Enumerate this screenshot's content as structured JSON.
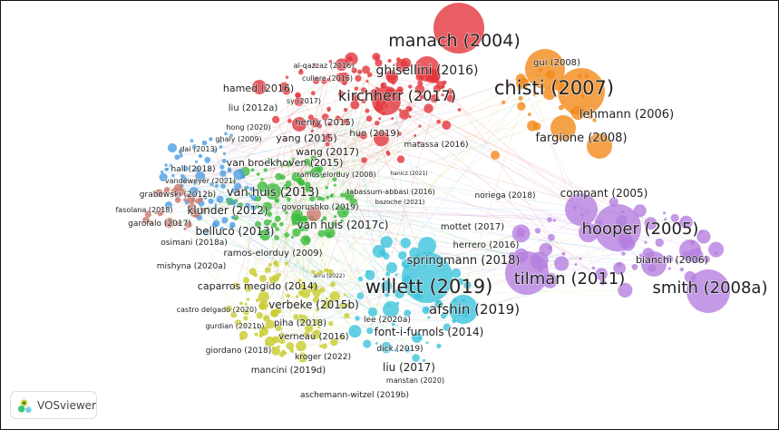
{
  "app": {
    "name": "VOSviewer"
  },
  "clusters": {
    "red": "#e2363c",
    "orange": "#f28a1a",
    "purple": "#b57fe0",
    "cyan": "#3cc4dc",
    "green": "#3cbc3c",
    "yellow": "#c8cc2c",
    "blue": "#4c9ee0",
    "brown": "#c8786c"
  },
  "labels": [
    {
      "text": "manach (2004)",
      "cluster": "red"
    },
    {
      "text": "ghisellini (2016)",
      "cluster": "red"
    },
    {
      "text": "chisti (2007)",
      "cluster": "orange"
    },
    {
      "text": "gui (2008)",
      "cluster": "orange"
    },
    {
      "text": "kirchherr (2017)",
      "cluster": "red"
    },
    {
      "text": "hamed (2016)",
      "cluster": "red"
    },
    {
      "text": "al-qazzaz (2016)",
      "cluster": "red"
    },
    {
      "text": "cullere (2016)",
      "cluster": "red"
    },
    {
      "text": "liu (2012a)",
      "cluster": "red"
    },
    {
      "text": "sy (2017)",
      "cluster": "red"
    },
    {
      "text": "henry (2015)",
      "cluster": "red"
    },
    {
      "text": "huo (2019)",
      "cluster": "red"
    },
    {
      "text": "hong (2020)",
      "cluster": "red"
    },
    {
      "text": "lehmann (2006)",
      "cluster": "orange"
    },
    {
      "text": "matassa (2016)",
      "cluster": "orange"
    },
    {
      "text": "fargione (2008)",
      "cluster": "orange"
    },
    {
      "text": "ghaly (2009)",
      "cluster": "blue"
    },
    {
      "text": "yang (2015)",
      "cluster": "red"
    },
    {
      "text": "dai (2013)",
      "cluster": "blue"
    },
    {
      "text": "wang (2017)",
      "cluster": "red"
    },
    {
      "text": "van broekhoven (2015)",
      "cluster": "green"
    },
    {
      "text": "hall (2018)",
      "cluster": "blue"
    },
    {
      "text": "vandeweyer (2021)",
      "cluster": "blue"
    },
    {
      "text": "ramos-elorduy (2008)",
      "cluster": "green"
    },
    {
      "text": "hanicz (2021)",
      "cluster": "red"
    },
    {
      "text": "grabowski (2012b)",
      "cluster": "brown"
    },
    {
      "text": "van huis (2013)",
      "cluster": "green"
    },
    {
      "text": "tabassum-abbasi (2016)",
      "cluster": "red"
    },
    {
      "text": "klunder (2012)",
      "cluster": "blue"
    },
    {
      "text": "govorushko (2019)",
      "cluster": "green"
    },
    {
      "text": "bazoche (2021)",
      "cluster": "red"
    },
    {
      "text": "fasolana (2018)",
      "cluster": "brown"
    },
    {
      "text": "garofalo (2017)",
      "cluster": "brown"
    },
    {
      "text": "van huis (2017c)",
      "cluster": "green"
    },
    {
      "text": "belluco (2013)",
      "cluster": "green"
    },
    {
      "text": "osimani (2018a)",
      "cluster": "blue"
    },
    {
      "text": "mottet (2017)",
      "cluster": "purple"
    },
    {
      "text": "noriega (2018)",
      "cluster": "purple"
    },
    {
      "text": "compant (2005)",
      "cluster": "purple"
    },
    {
      "text": "hooper (2005)",
      "cluster": "purple"
    },
    {
      "text": "herrero (2016)",
      "cluster": "purple"
    },
    {
      "text": "ramos-elorduy (2009)",
      "cluster": "green"
    },
    {
      "text": "mishyna (2020a)",
      "cluster": "blue"
    },
    {
      "text": "springmann (2018)",
      "cluster": "cyan"
    },
    {
      "text": "bianchi (2006)",
      "cluster": "purple"
    },
    {
      "text": "tilman (2011)",
      "cluster": "purple"
    },
    {
      "text": "willett (2019)",
      "cluster": "cyan"
    },
    {
      "text": "caparros megido (2014)",
      "cluster": "yellow"
    },
    {
      "text": "smith (2008a)",
      "cluster": "purple"
    },
    {
      "text": "arru (2022)",
      "cluster": "yellow"
    },
    {
      "text": "verbeke (2015b)",
      "cluster": "yellow"
    },
    {
      "text": "afshin (2019)",
      "cluster": "cyan"
    },
    {
      "text": "castro delgado (2020)",
      "cluster": "yellow"
    },
    {
      "text": "lee (2020a)",
      "cluster": "cyan"
    },
    {
      "text": "piha (2018)",
      "cluster": "yellow"
    },
    {
      "text": "gurdian (2021b)",
      "cluster": "yellow"
    },
    {
      "text": "font-i-furnols (2014)",
      "cluster": "cyan"
    },
    {
      "text": "verneau (2016)",
      "cluster": "yellow"
    },
    {
      "text": "dick (2019)",
      "cluster": "cyan"
    },
    {
      "text": "giordano (2018)",
      "cluster": "yellow"
    },
    {
      "text": "kroger (2022)",
      "cluster": "yellow"
    },
    {
      "text": "liu (2017)",
      "cluster": "cyan"
    },
    {
      "text": "mancini (2019d)",
      "cluster": "yellow"
    },
    {
      "text": "manstan (2020)",
      "cluster": "cyan"
    },
    {
      "text": "aschemann-witzel (2019b)",
      "cluster": "cyan"
    }
  ]
}
